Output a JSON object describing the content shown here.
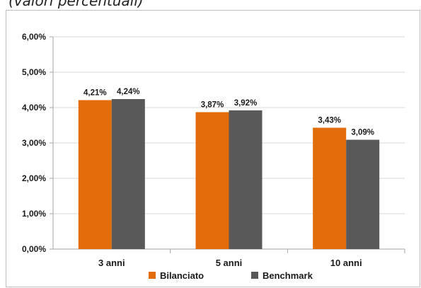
{
  "caption": "(valori percentuali)",
  "chart_data": {
    "type": "bar",
    "categories": [
      "3 anni",
      "5 anni",
      "10 anni"
    ],
    "series": [
      {
        "name": "Bilanciato",
        "values": [
          4.21,
          3.87,
          3.43
        ],
        "labels": [
          "4,21%",
          "3,87%",
          "3,43%"
        ],
        "color": "#e36c0a"
      },
      {
        "name": "Benchmark",
        "values": [
          4.24,
          3.92,
          3.09
        ],
        "labels": [
          "4,24%",
          "3,92%",
          "3,09%"
        ],
        "color": "#595959"
      }
    ],
    "yticks": [
      "0,00%",
      "1,00%",
      "2,00%",
      "3,00%",
      "4,00%",
      "5,00%",
      "6,00%"
    ],
    "ylim": [
      0,
      6
    ],
    "grid": true,
    "legend_position": "bottom",
    "gridline_color": "#d9d9d9",
    "axis_color": "#a6a6a6"
  }
}
